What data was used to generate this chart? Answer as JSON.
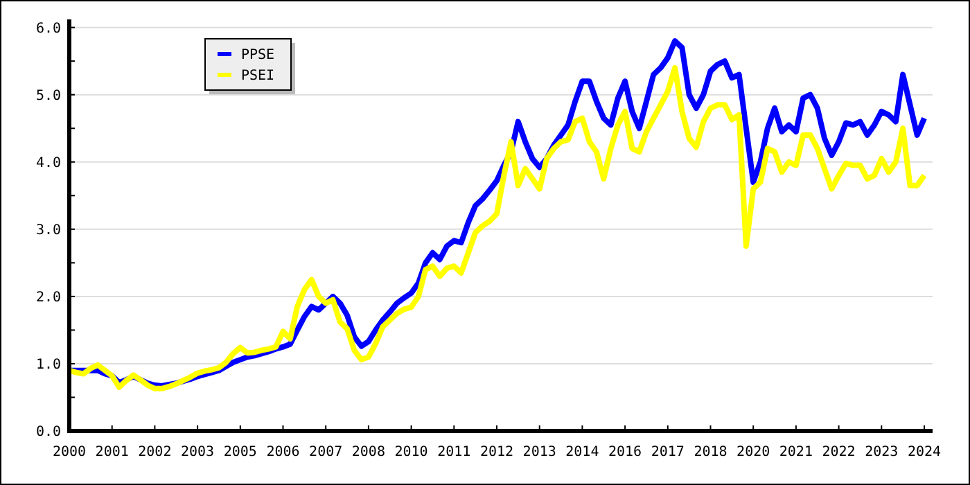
{
  "chart_data": {
    "type": "line",
    "ylim": [
      0,
      6.12
    ],
    "categories": [
      "2000",
      null,
      null,
      null,
      null,
      null,
      "2001",
      null,
      null,
      null,
      null,
      null,
      "2002",
      null,
      null,
      null,
      null,
      null,
      "2003",
      null,
      null,
      null,
      null,
      null,
      "2005",
      null,
      null,
      null,
      null,
      null,
      "2006",
      null,
      null,
      null,
      null,
      null,
      "2007",
      null,
      null,
      null,
      null,
      null,
      "2008",
      null,
      null,
      null,
      null,
      null,
      "2010",
      null,
      null,
      null,
      null,
      null,
      "2011",
      null,
      null,
      null,
      null,
      null,
      "2012",
      null,
      null,
      null,
      null,
      null,
      "2013",
      null,
      null,
      null,
      null,
      null,
      "2014",
      null,
      null,
      null,
      null,
      null,
      "2016",
      null,
      null,
      null,
      null,
      null,
      "2017",
      null,
      null,
      null,
      null,
      null,
      "2018",
      null,
      null,
      null,
      null,
      null,
      "2020",
      null,
      null,
      null,
      null,
      null,
      "2021",
      null,
      null,
      null,
      null,
      null,
      "2022",
      null,
      null,
      null,
      null,
      null,
      "2023",
      null,
      null,
      null,
      null,
      null,
      "2024"
    ],
    "yticks": [
      {
        "value": 0,
        "label": "0.0"
      },
      {
        "value": 0.5,
        "label": null
      },
      {
        "value": 1,
        "label": "1.0"
      },
      {
        "value": 1.5,
        "label": null
      },
      {
        "value": 2,
        "label": "2.0"
      },
      {
        "value": 2.5,
        "label": null
      },
      {
        "value": 3,
        "label": "3.0"
      },
      {
        "value": 3.5,
        "label": null
      },
      {
        "value": 4,
        "label": "4.0"
      },
      {
        "value": 4.5,
        "label": null
      },
      {
        "value": 5,
        "label": "5.0"
      },
      {
        "value": 5.5,
        "label": null
      },
      {
        "value": 6,
        "label": "6.0"
      }
    ],
    "grid": "y",
    "legend": "top left",
    "line_style": "solid",
    "marker": "none",
    "series": [
      {
        "name": "PPSE",
        "color": "#0000ff",
        "values": [
          0.9,
          0.9,
          0.9,
          0.9,
          0.9,
          0.85,
          0.82,
          0.72,
          0.76,
          0.81,
          0.76,
          0.71,
          0.68,
          0.67,
          0.69,
          0.71,
          0.74,
          0.77,
          0.81,
          0.84,
          0.87,
          0.9,
          0.96,
          1.02,
          1.06,
          1.1,
          1.12,
          1.15,
          1.18,
          1.22,
          1.25,
          1.29,
          1.5,
          1.7,
          1.85,
          1.8,
          1.9,
          2.0,
          1.9,
          1.72,
          1.4,
          1.26,
          1.33,
          1.5,
          1.65,
          1.77,
          1.9,
          1.98,
          2.05,
          2.2,
          2.5,
          2.65,
          2.55,
          2.75,
          2.83,
          2.8,
          3.1,
          3.35,
          3.45,
          3.58,
          3.72,
          3.95,
          4.15,
          4.6,
          4.3,
          4.05,
          3.92,
          4.05,
          4.25,
          4.4,
          4.55,
          4.9,
          5.2,
          5.2,
          4.9,
          4.65,
          4.55,
          4.95,
          5.2,
          4.75,
          4.5,
          4.9,
          5.3,
          5.4,
          5.55,
          5.8,
          5.7,
          5.0,
          4.8,
          5.0,
          5.35,
          5.45,
          5.5,
          5.25,
          5.3,
          4.5,
          3.7,
          4.0,
          4.5,
          4.8,
          4.45,
          4.55,
          4.45,
          4.95,
          5.0,
          4.8,
          4.35,
          4.1,
          4.3,
          4.58,
          4.55,
          4.6,
          4.4,
          4.55,
          4.75,
          4.7,
          4.6,
          5.3,
          4.85,
          4.4,
          4.65
        ]
      },
      {
        "name": "PSEI",
        "color": "#ffff00",
        "values": [
          0.9,
          0.87,
          0.85,
          0.93,
          0.98,
          0.9,
          0.82,
          0.65,
          0.75,
          0.83,
          0.76,
          0.68,
          0.63,
          0.63,
          0.66,
          0.7,
          0.75,
          0.8,
          0.86,
          0.89,
          0.91,
          0.94,
          1.02,
          1.15,
          1.24,
          1.16,
          1.17,
          1.2,
          1.22,
          1.25,
          1.48,
          1.37,
          1.85,
          2.1,
          2.25,
          2.0,
          1.9,
          1.95,
          1.62,
          1.52,
          1.2,
          1.06,
          1.1,
          1.3,
          1.55,
          1.65,
          1.75,
          1.81,
          1.84,
          2.0,
          2.4,
          2.45,
          2.3,
          2.42,
          2.45,
          2.35,
          2.65,
          2.95,
          3.05,
          3.12,
          3.23,
          3.8,
          4.3,
          3.65,
          3.9,
          3.75,
          3.6,
          4.05,
          4.2,
          4.3,
          4.33,
          4.6,
          4.65,
          4.3,
          4.15,
          3.75,
          4.2,
          4.55,
          4.75,
          4.2,
          4.15,
          4.45,
          4.65,
          4.85,
          5.05,
          5.4,
          4.75,
          4.35,
          4.22,
          4.6,
          4.8,
          4.85,
          4.85,
          4.63,
          4.7,
          2.75,
          3.6,
          3.7,
          4.2,
          4.15,
          3.85,
          4.0,
          3.95,
          4.4,
          4.4,
          4.2,
          3.9,
          3.6,
          3.8,
          3.98,
          3.95,
          3.95,
          3.75,
          3.8,
          4.05,
          3.85,
          4.0,
          4.5,
          3.65,
          3.65,
          3.8
        ]
      }
    ]
  }
}
